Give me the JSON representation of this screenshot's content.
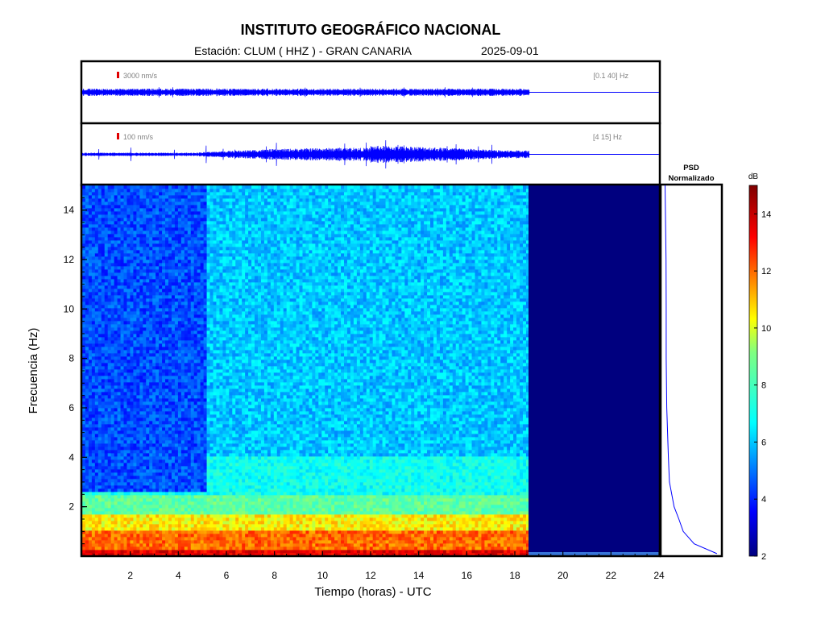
{
  "header": {
    "title": "INSTITUTO GEOGRÁFICO NACIONAL",
    "station": "Estación:  CLUM ( HHZ ) - GRAN CANARIA",
    "date": "2025-09-01"
  },
  "trace_top": {
    "scale_label": "3000 nm/s",
    "band_label": "[0.1 40] Hz"
  },
  "trace_bottom": {
    "scale_label": "100 nm/s",
    "band_label": "[4 15] Hz"
  },
  "psd": {
    "title_line1": "PSD",
    "title_line2": "Normalizado"
  },
  "colorbar": {
    "unit": "dB",
    "ticks": [
      2,
      4,
      6,
      8,
      10,
      12,
      14
    ],
    "range": [
      2,
      15
    ]
  },
  "colors": {
    "trace": "#0000ff",
    "marker": "#e00000",
    "nodata": "#00007f"
  },
  "chart_data": {
    "type": "heatmap",
    "xlabel": "Tiempo (horas) - UTC",
    "ylabel": "Frecuencia  (Hz)",
    "xlim": [
      0,
      24
    ],
    "ylim": [
      0,
      15
    ],
    "x_ticks": [
      2,
      4,
      6,
      8,
      10,
      12,
      14,
      16,
      18,
      20,
      22,
      24
    ],
    "y_ticks": [
      2,
      4,
      6,
      8,
      10,
      12,
      14
    ],
    "data_end_hour": 18.6,
    "energy_bands_db": [
      {
        "freq_max": 0.3,
        "level": 13.5
      },
      {
        "freq_max": 1.0,
        "level": 12.0
      },
      {
        "freq_max": 1.7,
        "level": 10.5
      },
      {
        "freq_max": 2.5,
        "level": 8.5
      },
      {
        "freq_max": 4.0,
        "level": 7.0
      },
      {
        "freq_max": 15.0,
        "level": 6.0
      }
    ],
    "quiet_period_hours": [
      0,
      5.1
    ],
    "quiet_period_level": 4.5,
    "psd_profile": [
      {
        "freq": 0.1,
        "psd": 0.95
      },
      {
        "freq": 0.5,
        "psd": 0.55
      },
      {
        "freq": 1.0,
        "psd": 0.35
      },
      {
        "freq": 1.5,
        "psd": 0.28
      },
      {
        "freq": 2.0,
        "psd": 0.2
      },
      {
        "freq": 3.0,
        "psd": 0.12
      },
      {
        "freq": 4.0,
        "psd": 0.1
      },
      {
        "freq": 6.0,
        "psd": 0.07
      },
      {
        "freq": 8.0,
        "psd": 0.06
      },
      {
        "freq": 10.0,
        "psd": 0.05
      },
      {
        "freq": 12.0,
        "psd": 0.05
      },
      {
        "freq": 15.0,
        "psd": 0.04
      }
    ]
  }
}
